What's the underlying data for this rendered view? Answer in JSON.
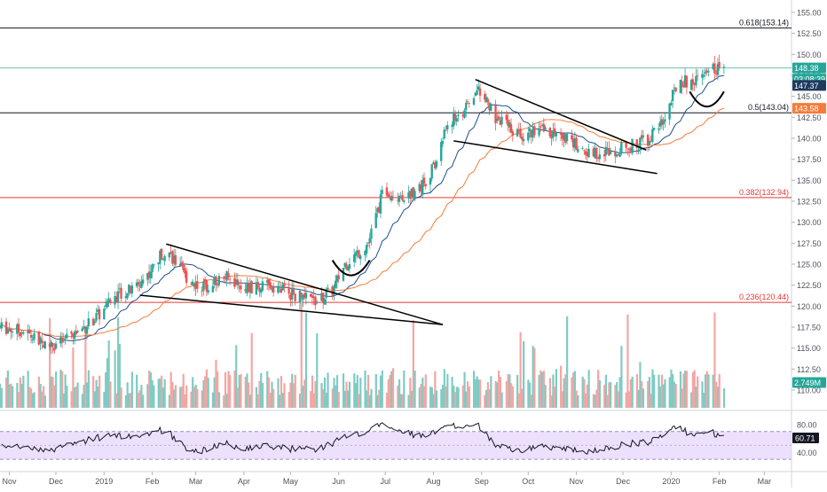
{
  "chart_data": [
    {
      "type": "candlestick",
      "title": "",
      "price_axis": {
        "ticks": [
          "155.00",
          "152.50",
          "150.00",
          "147.50",
          "145.00",
          "142.50",
          "140.00",
          "137.50",
          "135.00",
          "132.50",
          "130.00",
          "127.50",
          "125.00",
          "122.50",
          "120.00",
          "117.50",
          "115.00",
          "112.50",
          "110.00"
        ],
        "range": [
          109,
          156
        ]
      },
      "time_axis": {
        "ticks": [
          "Nov",
          "Dec",
          "2019",
          "Feb",
          "Mar",
          "Apr",
          "May",
          "Jun",
          "Jul",
          "Aug",
          "Sep",
          "Oct",
          "Nov",
          "Dec",
          "2020",
          "Feb",
          "Mar"
        ]
      },
      "price_badges": [
        {
          "label": "148.38",
          "color": "#26a69a"
        },
        {
          "label": "03:08:39",
          "color": "#26a69a"
        },
        {
          "label": "147.37",
          "color": "#1e3a5f"
        },
        {
          "label": "143.58",
          "color": "#f57c3a"
        },
        {
          "label": "2.749M",
          "color": "#26a69a"
        }
      ],
      "fib_levels": [
        {
          "label": "0.618(153.14)",
          "value": 153.14,
          "color": "#131722"
        },
        {
          "label": "0.5(143.04)",
          "value": 143.04,
          "color": "#131722"
        },
        {
          "label": "0.382(132.94)",
          "value": 132.94,
          "color": "#e53935"
        },
        {
          "label": "0.236(120.44)",
          "value": 120.44,
          "color": "#e53935"
        }
      ],
      "current_price": 148.38,
      "moving_averages": [
        {
          "color": "#1e4d8c"
        },
        {
          "color": "#f57c3a"
        }
      ],
      "colors": {
        "up": "#26a69a",
        "down": "#ef5350",
        "vol_up": "#80cbc4",
        "vol_down": "#f4a6a3"
      },
      "pattern_points": [
        {
          "x": "2019-02-10",
          "y": 127.4
        },
        {
          "x": "2019-08-07",
          "y": 117.8
        },
        {
          "x": "2019-01-24",
          "y": 121.3
        },
        {
          "x": "2019-08-28",
          "y": 147.0
        },
        {
          "x": "2019-12-16",
          "y": 138.6
        },
        {
          "x": "2019-08-14",
          "y": 139.7
        },
        {
          "x": "2019-12-23",
          "y": 135.8
        }
      ],
      "cup_patterns": [
        {
          "x": [
            "2019-05-28",
            "2019-06-21"
          ],
          "y": [
            125.9,
            124.2
          ]
        },
        {
          "x": [
            "2020-01-13",
            "2020-02-04"
          ],
          "y": [
            145.6,
            144.3
          ]
        }
      ]
    },
    {
      "type": "line",
      "title": "",
      "rsi": {
        "current_label": "60.71",
        "current": 60.71,
        "ticks": [
          "80.00",
          "40.00"
        ],
        "band": [
          30,
          70
        ],
        "line_color": "#131722",
        "band_fill": "#ede0fc"
      }
    }
  ]
}
